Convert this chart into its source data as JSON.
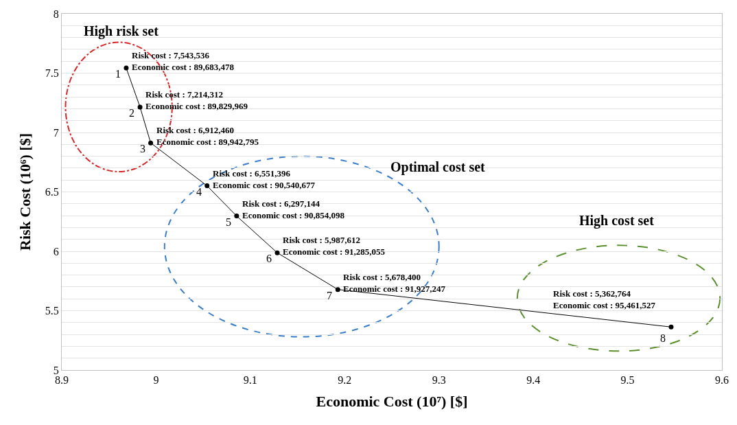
{
  "chart_data": {
    "type": "line",
    "xlabel": "Economic Cost (10⁷) [$]",
    "ylabel": "Risk Cost (10⁶) [$]",
    "x": [
      8.9683478,
      8.9829969,
      8.9942795,
      9.0540677,
      9.0854098,
      9.1285055,
      9.1927247,
      9.5461527
    ],
    "series": [
      {
        "color": "#000000",
        "values": [
          7.543536,
          7.214312,
          6.91246,
          6.551396,
          6.297144,
          5.987612,
          5.6784,
          5.362764
        ],
        "value_labels": [
          "Risk cost : 7,543,536\nEconomic cost : 89,683,478",
          "Risk cost : 7,214,312\nEconomic cost : 89,829,969",
          "Risk cost : 6,912,460\nEconomic cost : 89,942,795",
          "Risk cost : 6,551,396\nEconomic cost : 90,540,677",
          "Risk cost : 6,297,144\nEconomic cost : 90,854,098",
          "Risk cost : 5,987,612\nEconomic cost : 91,285,055",
          "Risk cost : 5,678,400\nEconomic cost : 91,927,247",
          "Risk cost : 5,362,764\nEconomic cost : 95,461,527"
        ]
      }
    ],
    "annotations": [
      {
        "text": "1",
        "x": 8.9683478,
        "y": 7.543536
      },
      {
        "text": "2",
        "x": 8.9829969,
        "y": 7.214312
      },
      {
        "text": "3",
        "x": 8.9942795,
        "y": 6.91246
      },
      {
        "text": "4",
        "x": 9.0540677,
        "y": 6.551396
      },
      {
        "text": "5",
        "x": 9.0854098,
        "y": 6.297144
      },
      {
        "text": "6",
        "x": 9.1285055,
        "y": 5.987612
      },
      {
        "text": "7",
        "x": 9.1927247,
        "y": 5.6784
      },
      {
        "text": "8",
        "x": 9.5461527,
        "y": 5.362764
      },
      "High risk set",
      "Optimal cost set",
      "High cost set"
    ],
    "xlim": [
      8.9,
      9.6
    ],
    "xticks": [
      8.9,
      9,
      9.1,
      9.2,
      9.3,
      9.4,
      9.5,
      9.6
    ],
    "ylim": [
      5,
      8
    ],
    "yticks": [
      5,
      {
        "value": 5.1,
        "label": null
      },
      {
        "value": 5.2,
        "label": null
      },
      {
        "value": 5.3,
        "label": null
      },
      {
        "value": 5.4,
        "label": null
      },
      5.5,
      {
        "value": 5.6,
        "label": null
      },
      {
        "value": 5.7,
        "label": null
      },
      {
        "value": 5.8,
        "label": null
      },
      {
        "value": 5.9,
        "label": null
      },
      6,
      {
        "value": 6.1,
        "label": null
      },
      {
        "value": 6.2,
        "label": null
      },
      {
        "value": 6.3,
        "label": null
      },
      {
        "value": 6.4,
        "label": null
      },
      6.5,
      {
        "value": 6.6,
        "label": null
      },
      {
        "value": 6.7,
        "label": null
      },
      {
        "value": 6.8,
        "label": null
      },
      {
        "value": 6.9,
        "label": null
      },
      7,
      {
        "value": 7.1,
        "label": null
      },
      {
        "value": 7.2,
        "label": null
      },
      {
        "value": 7.3,
        "label": null
      },
      {
        "value": 7.4,
        "label": null
      },
      7.5,
      {
        "value": 7.6,
        "label": null
      },
      {
        "value": 7.7,
        "label": null
      },
      {
        "value": 7.8,
        "label": null
      },
      {
        "value": 7.9,
        "label": null
      },
      8
    ],
    "grid": "y",
    "marker": "circle",
    "line_style": "solid"
  }
}
